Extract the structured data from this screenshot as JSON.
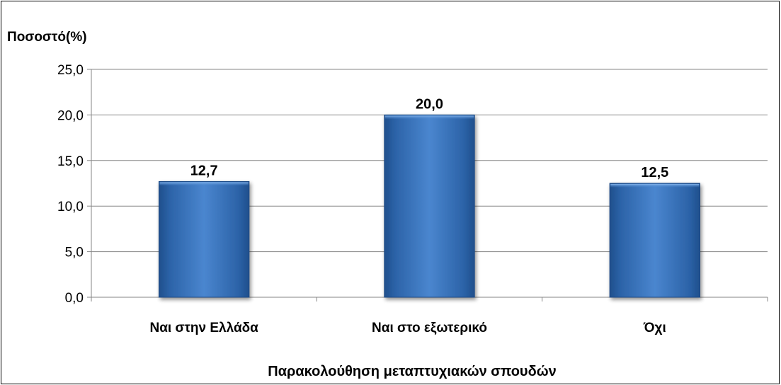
{
  "chart_data": {
    "type": "bar",
    "ylabel": "Ποσοστό(%)",
    "xlabel": "Παρακολούθηση μεταπτυχιακών σπουδών",
    "categories": [
      "Ναι στην Ελλάδα",
      "Ναι στο εξωτερικό",
      "Όχι"
    ],
    "values": [
      12.7,
      20.0,
      12.5
    ],
    "value_labels": [
      "12,7",
      "20,0",
      "12,5"
    ],
    "ylim": [
      0,
      25
    ],
    "yticks": [
      "0,0",
      "5,0",
      "10,0",
      "15,0",
      "20,0",
      "25,0"
    ],
    "grid": true,
    "legend": "none",
    "bar_color": "#2f6cb5"
  }
}
